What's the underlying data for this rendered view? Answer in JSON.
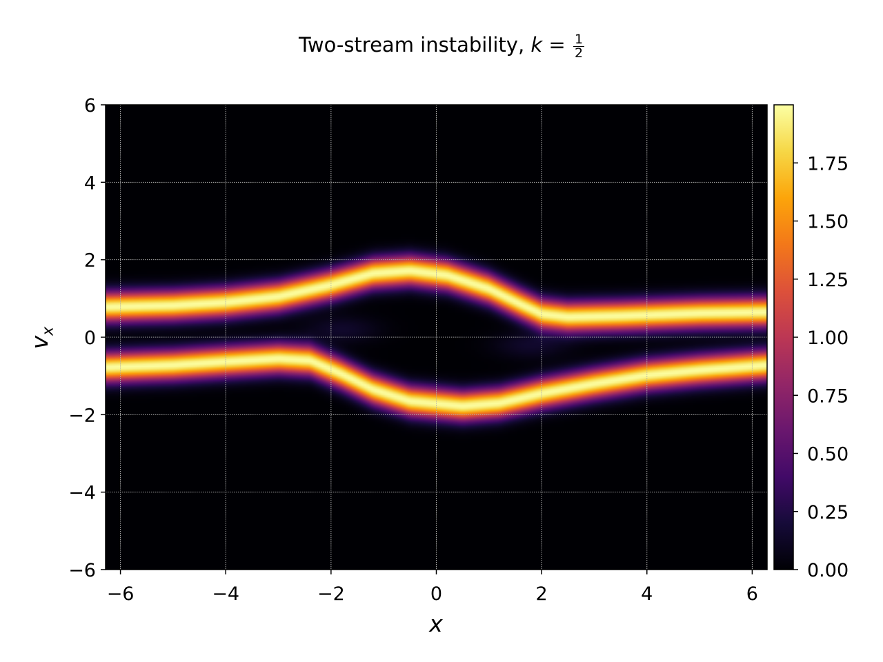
{
  "title": {
    "prefix": "Two-stream instability, ",
    "k_symbol": "k",
    "equals": " = ",
    "frac_num": "1",
    "frac_den": "2"
  },
  "axes": {
    "xlabel": "x",
    "ylabel_main": "v",
    "ylabel_sub": "x"
  },
  "chart_data": {
    "type": "heatmap",
    "colormap": "inferno",
    "xlim": [
      -6.283,
      6.283
    ],
    "ylim": [
      -6,
      6
    ],
    "x_ticks": [
      -6,
      -4,
      -2,
      0,
      2,
      4,
      6
    ],
    "x_tick_labels": [
      "−6",
      "−4",
      "−2",
      "0",
      "2",
      "4",
      "6"
    ],
    "y_ticks": [
      -6,
      -4,
      -2,
      0,
      2,
      4,
      6
    ],
    "y_tick_labels": [
      "−6",
      "−4",
      "−2",
      "0",
      "2",
      "4",
      "6"
    ],
    "grid": true,
    "colorbar": {
      "min": 0.0,
      "max": 2.0,
      "ticks": [
        0.0,
        0.25,
        0.5,
        0.75,
        1.0,
        1.25,
        1.5,
        1.75
      ],
      "tick_labels": [
        "0.00",
        "0.25",
        "0.50",
        "0.75",
        "1.00",
        "1.25",
        "1.50",
        "1.75"
      ]
    },
    "streams": [
      {
        "description_of_curve": "upper stream",
        "peak_value": 1.99,
        "points": [
          [
            -6.283,
            0.78
          ],
          [
            -5,
            0.82
          ],
          [
            -4,
            0.9
          ],
          [
            -3,
            1.05
          ],
          [
            -2,
            1.35
          ],
          [
            -1.2,
            1.65
          ],
          [
            -0.5,
            1.72
          ],
          [
            0.2,
            1.6
          ],
          [
            1,
            1.25
          ],
          [
            1.6,
            0.85
          ],
          [
            2,
            0.6
          ],
          [
            2.5,
            0.52
          ],
          [
            3.5,
            0.55
          ],
          [
            5,
            0.62
          ],
          [
            6.283,
            0.65
          ]
        ]
      },
      {
        "description_of_curve": "lower stream",
        "peak_value": 1.99,
        "points": [
          [
            -6.283,
            -0.78
          ],
          [
            -5,
            -0.72
          ],
          [
            -4,
            -0.63
          ],
          [
            -3,
            -0.55
          ],
          [
            -2.4,
            -0.6
          ],
          [
            -1.8,
            -0.95
          ],
          [
            -1.2,
            -1.35
          ],
          [
            -0.5,
            -1.65
          ],
          [
            0.5,
            -1.78
          ],
          [
            1.2,
            -1.7
          ],
          [
            2,
            -1.45
          ],
          [
            3,
            -1.2
          ],
          [
            4,
            -0.98
          ],
          [
            5,
            -0.85
          ],
          [
            6.283,
            -0.72
          ]
        ]
      }
    ],
    "stream_width": 0.26,
    "faint_halo": [
      {
        "x": -1.8,
        "y": 0.2,
        "sigma_x": 0.5,
        "sigma_y": 0.25,
        "value": 0.15
      },
      {
        "x": 1.8,
        "y": -0.2,
        "sigma_x": 0.5,
        "sigma_y": 0.25,
        "value": 0.15
      }
    ]
  }
}
